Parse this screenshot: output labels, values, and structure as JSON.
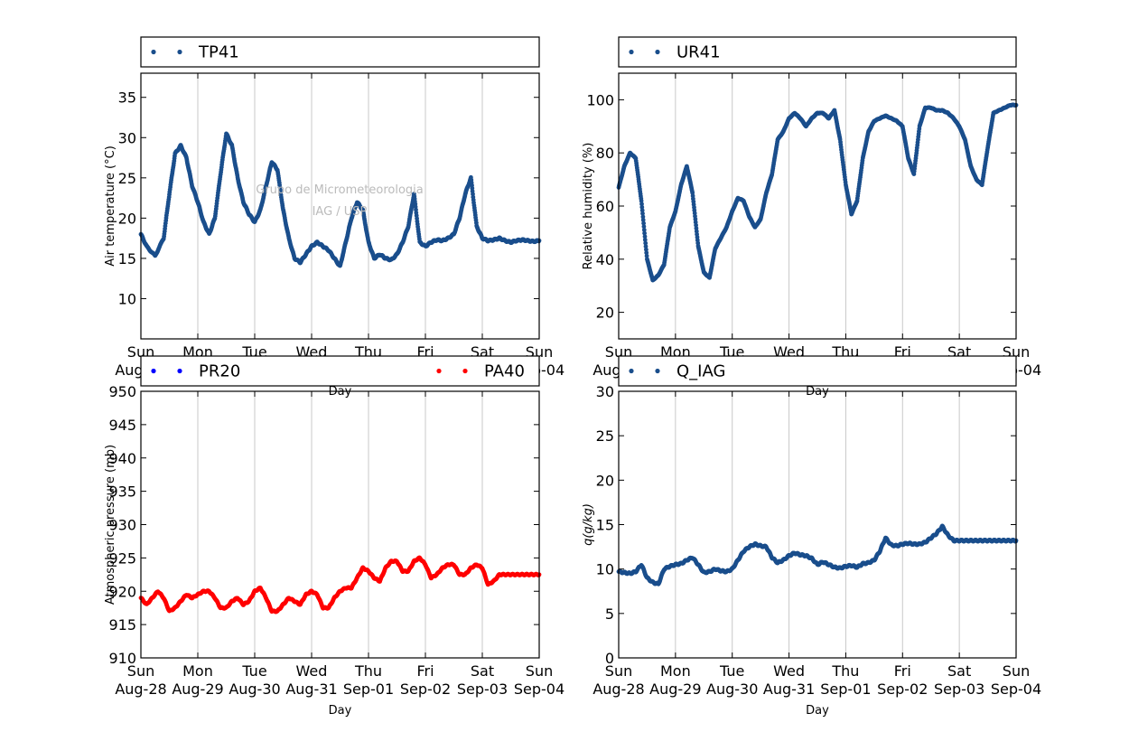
{
  "chart_data": [
    {
      "type": "scatter",
      "ylabel": "Air temperature (°C)",
      "xlabel": "Day",
      "ylim": [
        5,
        38
      ],
      "yticks": [
        10,
        15,
        20,
        25,
        30,
        35
      ],
      "grid": "vertical",
      "legend": "top",
      "watermark": [
        "Grupo de Micrometeorologia",
        "IAG / USP"
      ],
      "series": [
        {
          "name": "TP41",
          "color": "#1a4e8c",
          "x": [
            0,
            0.1,
            0.25,
            0.4,
            0.5,
            0.6,
            0.7,
            0.8,
            0.9,
            1.0,
            1.1,
            1.2,
            1.3,
            1.4,
            1.5,
            1.6,
            1.7,
            1.8,
            1.9,
            2.0,
            2.1,
            2.2,
            2.3,
            2.4,
            2.5,
            2.6,
            2.7,
            2.8,
            2.9,
            3.0,
            3.1,
            3.2,
            3.3,
            3.4,
            3.5,
            3.6,
            3.7,
            3.8,
            3.9,
            4.0,
            4.1,
            4.2,
            4.3,
            4.4,
            4.5,
            4.6,
            4.7,
            4.8,
            4.9,
            5.0,
            5.1,
            5.2,
            5.3,
            5.4,
            5.5,
            5.6,
            5.7,
            5.8,
            5.9,
            6.0,
            6.1,
            6.2,
            6.3,
            6.4,
            6.5,
            6.6,
            6.7,
            6.8,
            6.9,
            7.0
          ],
          "y": [
            18,
            16.5,
            15.3,
            17.5,
            23,
            28,
            29,
            27.5,
            24,
            22,
            19.5,
            18,
            20,
            25.5,
            30.5,
            29,
            25,
            22,
            20.5,
            19.5,
            21,
            24,
            27,
            26,
            21,
            17.5,
            15,
            14.5,
            15.5,
            16.5,
            17,
            16.5,
            16,
            15,
            14,
            17,
            20,
            22,
            21,
            17,
            15,
            15.5,
            15,
            14.8,
            15.5,
            17,
            19,
            23,
            17,
            16.5,
            17,
            17.3,
            17.2,
            17.5,
            18,
            20,
            23,
            25,
            19,
            17.5,
            17.2,
            17.3,
            17.5,
            17.2,
            17,
            17.2,
            17.3,
            17.2,
            17.1,
            17.2
          ]
        }
      ]
    },
    {
      "type": "scatter",
      "ylabel": "Relative humidity (%)",
      "xlabel": "Day",
      "ylim": [
        10,
        110
      ],
      "yticks": [
        20,
        40,
        60,
        80,
        100
      ],
      "grid": "vertical",
      "legend": "top",
      "series": [
        {
          "name": "UR41",
          "color": "#1a4e8c",
          "x": [
            0,
            0.1,
            0.2,
            0.3,
            0.4,
            0.5,
            0.6,
            0.7,
            0.8,
            0.9,
            1.0,
            1.1,
            1.2,
            1.3,
            1.4,
            1.5,
            1.6,
            1.7,
            1.8,
            1.9,
            2.0,
            2.1,
            2.2,
            2.3,
            2.4,
            2.5,
            2.6,
            2.7,
            2.8,
            2.9,
            3.0,
            3.1,
            3.2,
            3.3,
            3.4,
            3.5,
            3.6,
            3.7,
            3.8,
            3.9,
            4.0,
            4.1,
            4.2,
            4.3,
            4.4,
            4.5,
            4.6,
            4.7,
            4.8,
            4.9,
            5.0,
            5.1,
            5.2,
            5.3,
            5.4,
            5.5,
            5.6,
            5.7,
            5.8,
            5.9,
            6.0,
            6.1,
            6.2,
            6.3,
            6.4,
            6.5,
            6.6,
            6.7,
            6.8,
            6.9,
            7.0
          ],
          "y": [
            67,
            75,
            80,
            78,
            62,
            40,
            32,
            34,
            38,
            52,
            58,
            68,
            75,
            65,
            45,
            35,
            33,
            44,
            48,
            52,
            58,
            63,
            62,
            56,
            52,
            55,
            65,
            72,
            85,
            88,
            93,
            95,
            93,
            90,
            93,
            95,
            95,
            93,
            96,
            85,
            68,
            57,
            62,
            78,
            88,
            92,
            93,
            94,
            93,
            92,
            90,
            78,
            72,
            90,
            97,
            97,
            96,
            96,
            95,
            93,
            90,
            85,
            75,
            70,
            68,
            82,
            95,
            96,
            97,
            98,
            98
          ]
        }
      ]
    },
    {
      "type": "scatter",
      "ylabel": "Atmospheric pressure (mb)",
      "xlabel": "Day",
      "ylim": [
        910,
        950
      ],
      "yticks": [
        910,
        915,
        920,
        925,
        930,
        935,
        940,
        945,
        950
      ],
      "grid": "vertical",
      "legend": "top",
      "series": [
        {
          "name": "PR20",
          "color": "#0000ff",
          "x": [],
          "y": []
        },
        {
          "name": "PA40",
          "color": "#ff0000",
          "x": [
            0,
            0.1,
            0.2,
            0.3,
            0.4,
            0.5,
            0.6,
            0.7,
            0.8,
            0.9,
            1.0,
            1.1,
            1.2,
            1.3,
            1.4,
            1.5,
            1.6,
            1.7,
            1.8,
            1.9,
            2.0,
            2.1,
            2.2,
            2.3,
            2.4,
            2.5,
            2.6,
            2.7,
            2.8,
            2.9,
            3.0,
            3.1,
            3.2,
            3.3,
            3.4,
            3.5,
            3.6,
            3.7,
            3.8,
            3.9,
            4.0,
            4.1,
            4.2,
            4.3,
            4.4,
            4.5,
            4.6,
            4.7,
            4.8,
            4.9,
            5.0,
            5.1,
            5.2,
            5.3,
            5.4,
            5.5,
            5.6,
            5.7,
            5.8,
            5.9,
            6.0,
            6.1,
            6.2,
            6.3,
            6.4,
            6.5,
            6.6,
            6.7,
            6.8,
            6.9,
            7.0
          ],
          "y": [
            919,
            918,
            919,
            920,
            919,
            917,
            917.5,
            918.5,
            919.5,
            919,
            919.5,
            920,
            920,
            919,
            917.5,
            917.5,
            918.5,
            919,
            918,
            918.5,
            920,
            920.5,
            919,
            917,
            917,
            918,
            919,
            918.5,
            918,
            919.5,
            920,
            919.5,
            917.5,
            917.5,
            919,
            920,
            920.5,
            920.5,
            922,
            923.5,
            923,
            922,
            921.5,
            923.5,
            924.5,
            924.5,
            923,
            923,
            924.5,
            925,
            924,
            922,
            922.5,
            923.5,
            924,
            924,
            922.5,
            922.5,
            923.5,
            924,
            923.5,
            921,
            921.5,
            922.5,
            922.5,
            922.5,
            922.5,
            922.5,
            922.5,
            922.5,
            922.5
          ]
        }
      ]
    },
    {
      "type": "scatter",
      "ylabel": "q(g/kg)",
      "xlabel": "Day",
      "ylim": [
        0,
        30
      ],
      "yticks": [
        0,
        5,
        10,
        15,
        20,
        25,
        30
      ],
      "grid": "vertical",
      "legend": "top",
      "series": [
        {
          "name": "Q_IAG",
          "color": "#1a4e8c",
          "x": [
            0,
            0.1,
            0.2,
            0.3,
            0.4,
            0.5,
            0.6,
            0.7,
            0.8,
            0.9,
            1.0,
            1.1,
            1.2,
            1.3,
            1.4,
            1.5,
            1.6,
            1.7,
            1.8,
            1.9,
            2.0,
            2.1,
            2.2,
            2.3,
            2.4,
            2.5,
            2.6,
            2.7,
            2.8,
            2.9,
            3.0,
            3.1,
            3.2,
            3.3,
            3.4,
            3.5,
            3.6,
            3.7,
            3.8,
            3.9,
            4.0,
            4.1,
            4.2,
            4.3,
            4.4,
            4.5,
            4.6,
            4.7,
            4.8,
            4.9,
            5.0,
            5.1,
            5.2,
            5.3,
            5.4,
            5.5,
            5.6,
            5.7,
            5.8,
            5.9,
            6.0,
            6.1,
            6.2,
            6.3,
            6.4,
            6.5,
            6.6,
            6.7,
            6.8,
            6.9,
            7.0
          ],
          "y": [
            9.7,
            9.6,
            9.5,
            9.7,
            10.5,
            9,
            8.5,
            8.3,
            10,
            10.3,
            10.5,
            10.6,
            11,
            11.3,
            10.5,
            9.6,
            9.7,
            10,
            9.8,
            9.7,
            10,
            11,
            12,
            12.5,
            12.8,
            12.6,
            12.5,
            11.3,
            10.7,
            11,
            11.5,
            11.8,
            11.6,
            11.5,
            11.2,
            10.5,
            10.8,
            10.5,
            10.2,
            10.1,
            10.3,
            10.4,
            10.2,
            10.6,
            10.7,
            11,
            12,
            13.5,
            12.7,
            12.6,
            12.8,
            12.9,
            12.8,
            12.8,
            13,
            13.5,
            14,
            14.8,
            13.8,
            13.2,
            13.2,
            13.2,
            13.2,
            13.2,
            13.2,
            13.2,
            13.2,
            13.2,
            13.2,
            13.2,
            13.2
          ]
        }
      ]
    }
  ],
  "x_axis": {
    "ticks": [
      {
        "day": "Sun",
        "date": "Aug-28"
      },
      {
        "day": "Mon",
        "date": "Aug-29"
      },
      {
        "day": "Tue",
        "date": "Aug-30"
      },
      {
        "day": "Wed",
        "date": "Aug-31"
      },
      {
        "day": "Thu",
        "date": "Sep-01"
      },
      {
        "day": "Fri",
        "date": "Sep-02"
      },
      {
        "day": "Sat",
        "date": "Sep-03"
      },
      {
        "day": "Sun",
        "date": "Sep-04"
      }
    ],
    "xlim": [
      0,
      7
    ]
  }
}
